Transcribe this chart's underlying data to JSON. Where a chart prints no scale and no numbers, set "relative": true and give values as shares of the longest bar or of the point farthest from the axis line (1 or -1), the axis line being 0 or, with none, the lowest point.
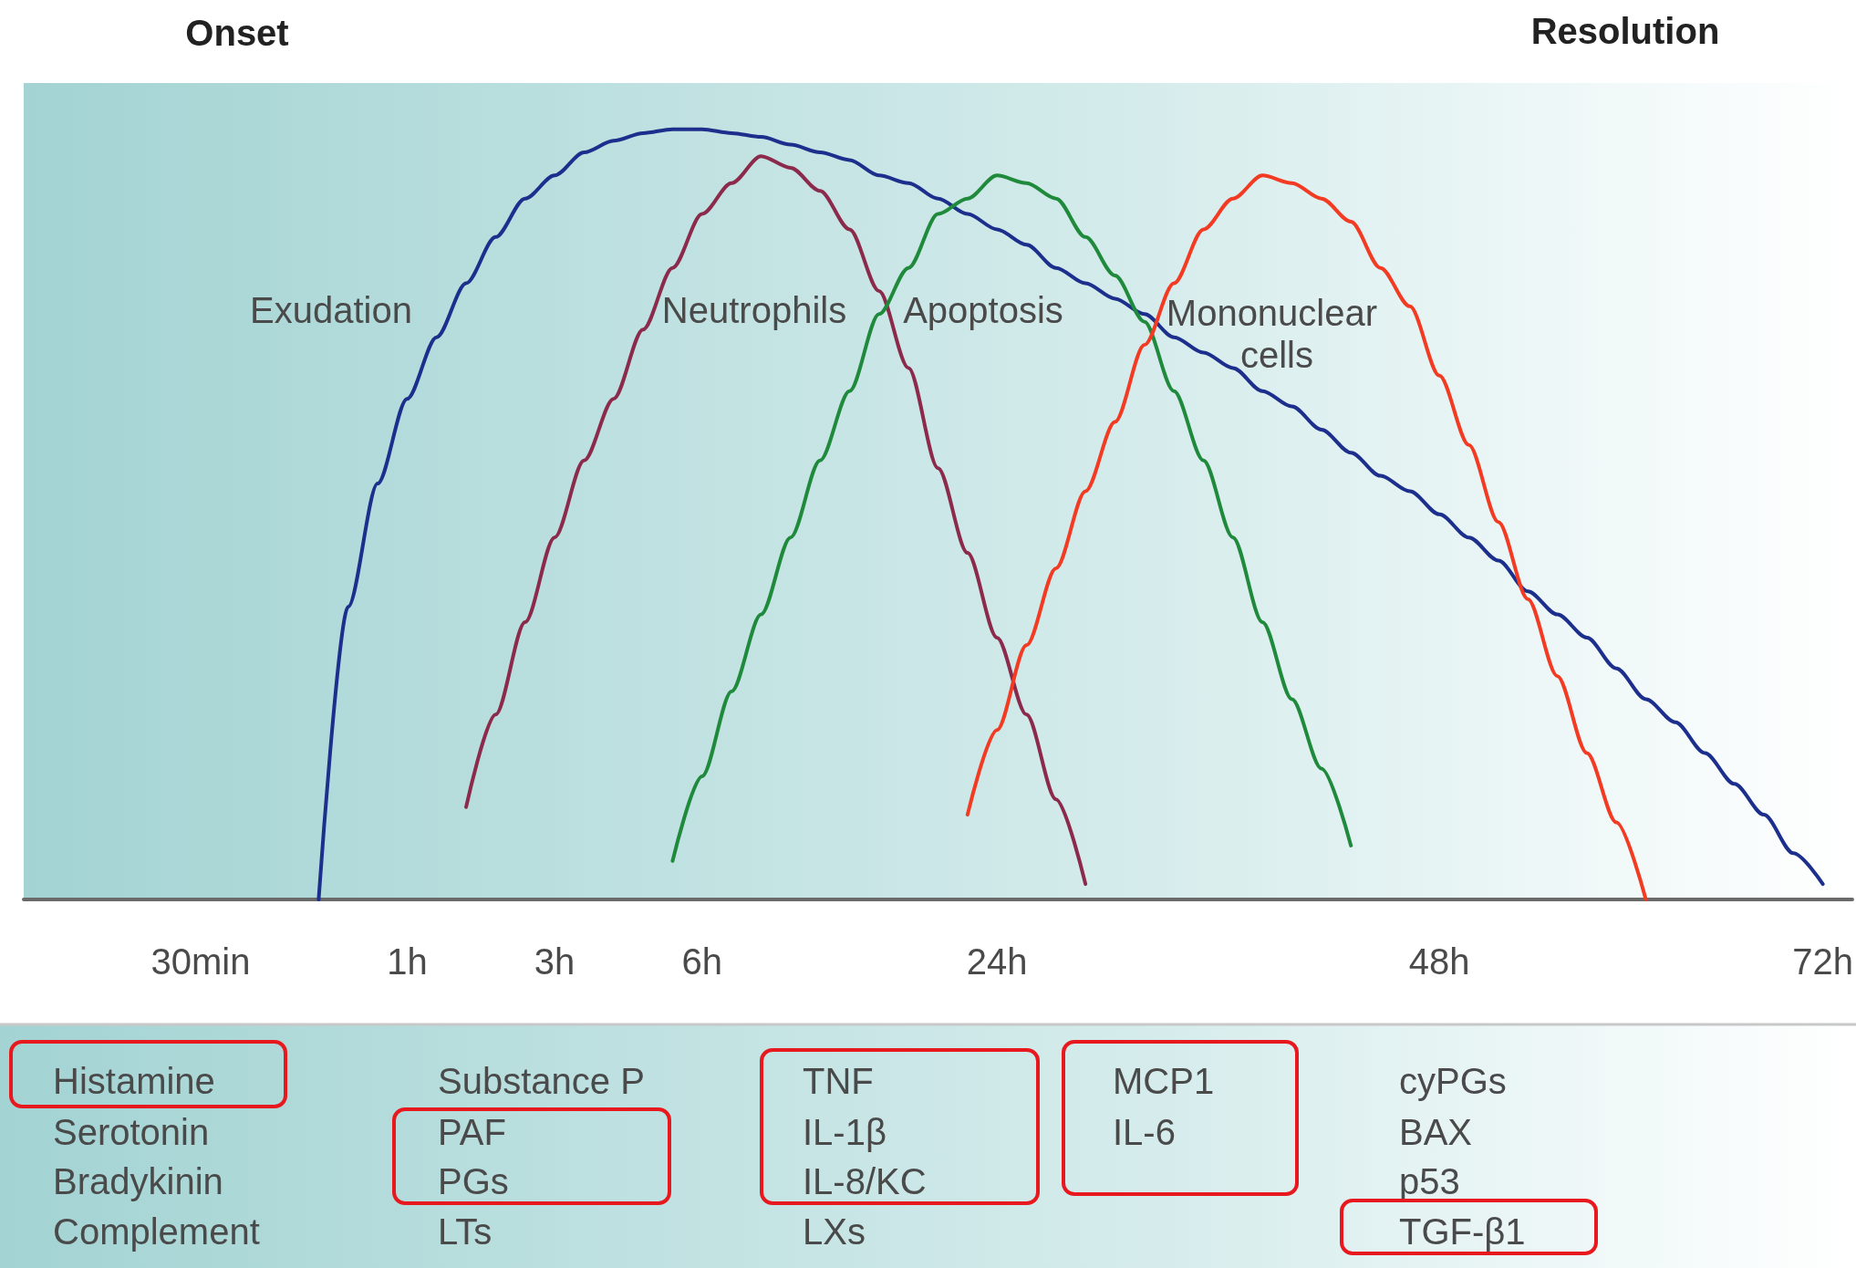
{
  "chart_data": {
    "type": "line",
    "relative": true,
    "legend": false,
    "grid": false,
    "marker": "none",
    "line_style": "solid",
    "categories": [
      null,
      null,
      null,
      null,
      null,
      null,
      "30min",
      null,
      null,
      null,
      null,
      null,
      null,
      "1h",
      null,
      null,
      null,
      null,
      "3h",
      null,
      null,
      null,
      null,
      "6h",
      null,
      null,
      null,
      null,
      null,
      null,
      null,
      null,
      null,
      "24h",
      null,
      null,
      null,
      null,
      null,
      null,
      null,
      null,
      null,
      null,
      null,
      null,
      null,
      null,
      "48h",
      null,
      null,
      null,
      null,
      null,
      null,
      null,
      null,
      null,
      null,
      null,
      null,
      "72h",
      null
    ],
    "series": [
      {
        "name": "Exudation",
        "color": "#1c2f8c",
        "values": [
          null,
          null,
          null,
          null,
          null,
          null,
          null,
          null,
          null,
          null,
          0,
          0.38,
          0.54,
          0.65,
          0.73,
          0.8,
          0.86,
          0.91,
          0.94,
          0.97,
          0.985,
          0.995,
          1,
          1,
          0.995,
          0.99,
          0.98,
          0.97,
          0.96,
          0.94,
          0.93,
          0.91,
          0.89,
          0.87,
          0.85,
          0.82,
          0.8,
          0.78,
          0.76,
          0.73,
          0.71,
          0.69,
          0.66,
          0.64,
          0.61,
          0.58,
          0.55,
          0.53,
          0.5,
          0.47,
          0.44,
          0.4,
          0.37,
          0.34,
          0.3,
          0.26,
          0.23,
          0.19,
          0.15,
          0.11,
          0.06,
          0.02,
          null
        ]
      },
      {
        "name": "Neutrophils",
        "color": "#8c2a4c",
        "values": [
          null,
          null,
          null,
          null,
          null,
          null,
          null,
          null,
          null,
          null,
          null,
          null,
          null,
          null,
          null,
          0.12,
          0.24,
          0.36,
          0.47,
          0.57,
          0.65,
          0.74,
          0.82,
          0.89,
          0.93,
          0.965,
          0.95,
          0.92,
          0.87,
          0.79,
          0.69,
          0.56,
          0.45,
          0.34,
          0.24,
          0.13,
          0.02,
          null,
          null,
          null,
          null,
          null,
          null,
          null,
          null,
          null,
          null,
          null,
          null,
          null,
          null,
          null,
          null,
          null,
          null,
          null,
          null,
          null,
          null,
          null,
          null,
          null,
          null
        ]
      },
      {
        "name": "Apoptosis",
        "color": "#1f8a3c",
        "values": [
          null,
          null,
          null,
          null,
          null,
          null,
          null,
          null,
          null,
          null,
          null,
          null,
          null,
          null,
          null,
          null,
          null,
          null,
          null,
          null,
          null,
          null,
          0.05,
          0.16,
          0.27,
          0.37,
          0.47,
          0.57,
          0.66,
          0.76,
          0.82,
          0.89,
          0.91,
          0.94,
          0.93,
          0.91,
          0.86,
          0.81,
          0.75,
          0.66,
          0.57,
          0.47,
          0.36,
          0.26,
          0.17,
          0.07,
          null,
          null,
          null,
          null,
          null,
          null,
          null,
          null,
          null,
          null,
          null,
          null,
          null,
          null,
          null,
          null,
          null
        ]
      },
      {
        "name": "Mononuclear cells",
        "color": "#f23b22",
        "values": [
          null,
          null,
          null,
          null,
          null,
          null,
          null,
          null,
          null,
          null,
          null,
          null,
          null,
          null,
          null,
          null,
          null,
          null,
          null,
          null,
          null,
          null,
          null,
          null,
          null,
          null,
          null,
          null,
          null,
          null,
          null,
          null,
          0.11,
          0.22,
          0.33,
          0.43,
          0.53,
          0.62,
          0.72,
          0.8,
          0.87,
          0.91,
          0.94,
          0.93,
          0.91,
          0.88,
          0.82,
          0.77,
          0.68,
          0.59,
          0.49,
          0.39,
          0.29,
          0.19,
          0.1,
          0,
          null,
          null,
          null,
          null,
          null,
          null,
          null
        ]
      }
    ],
    "annotations": [
      "Onset",
      "Resolution",
      "Histamine",
      "Serotonin",
      "Bradykinin",
      "Complement",
      "Substance P",
      "PAF",
      "PGs",
      "LTs",
      "TNF",
      "IL-1β",
      "IL-8/KC",
      "LXs",
      "MCP1",
      "IL-6",
      "cyPGs",
      "BAX",
      "p53",
      "TGF-β1"
    ]
  }
}
